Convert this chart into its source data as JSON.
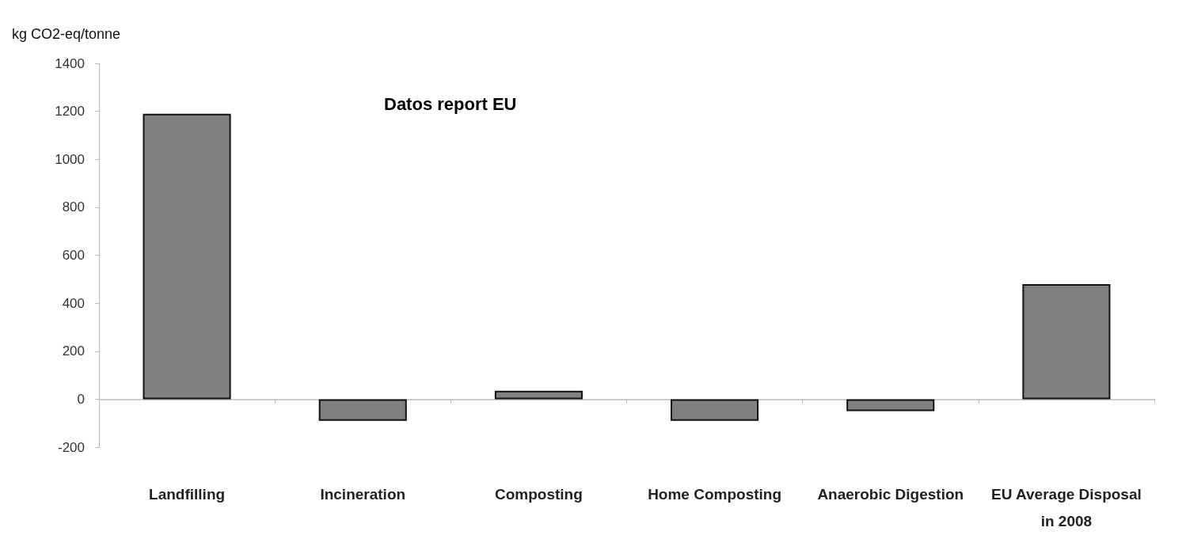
{
  "chart_data": {
    "type": "bar",
    "title": "Datos report EU",
    "ylabel": "kg CO2-eq/tonne",
    "categories": [
      "Landfilling",
      "Incineration",
      "Composting",
      "Home Composting",
      "Anaerobic Digestion",
      "EU Average Disposal\nin 2008"
    ],
    "values": [
      1190,
      -90,
      35,
      -90,
      -50,
      480
    ],
    "color": "#808080",
    "ylim": [
      -200,
      1400
    ],
    "yticks": [
      -200,
      0,
      200,
      400,
      600,
      800,
      1000,
      1200,
      1400
    ]
  }
}
